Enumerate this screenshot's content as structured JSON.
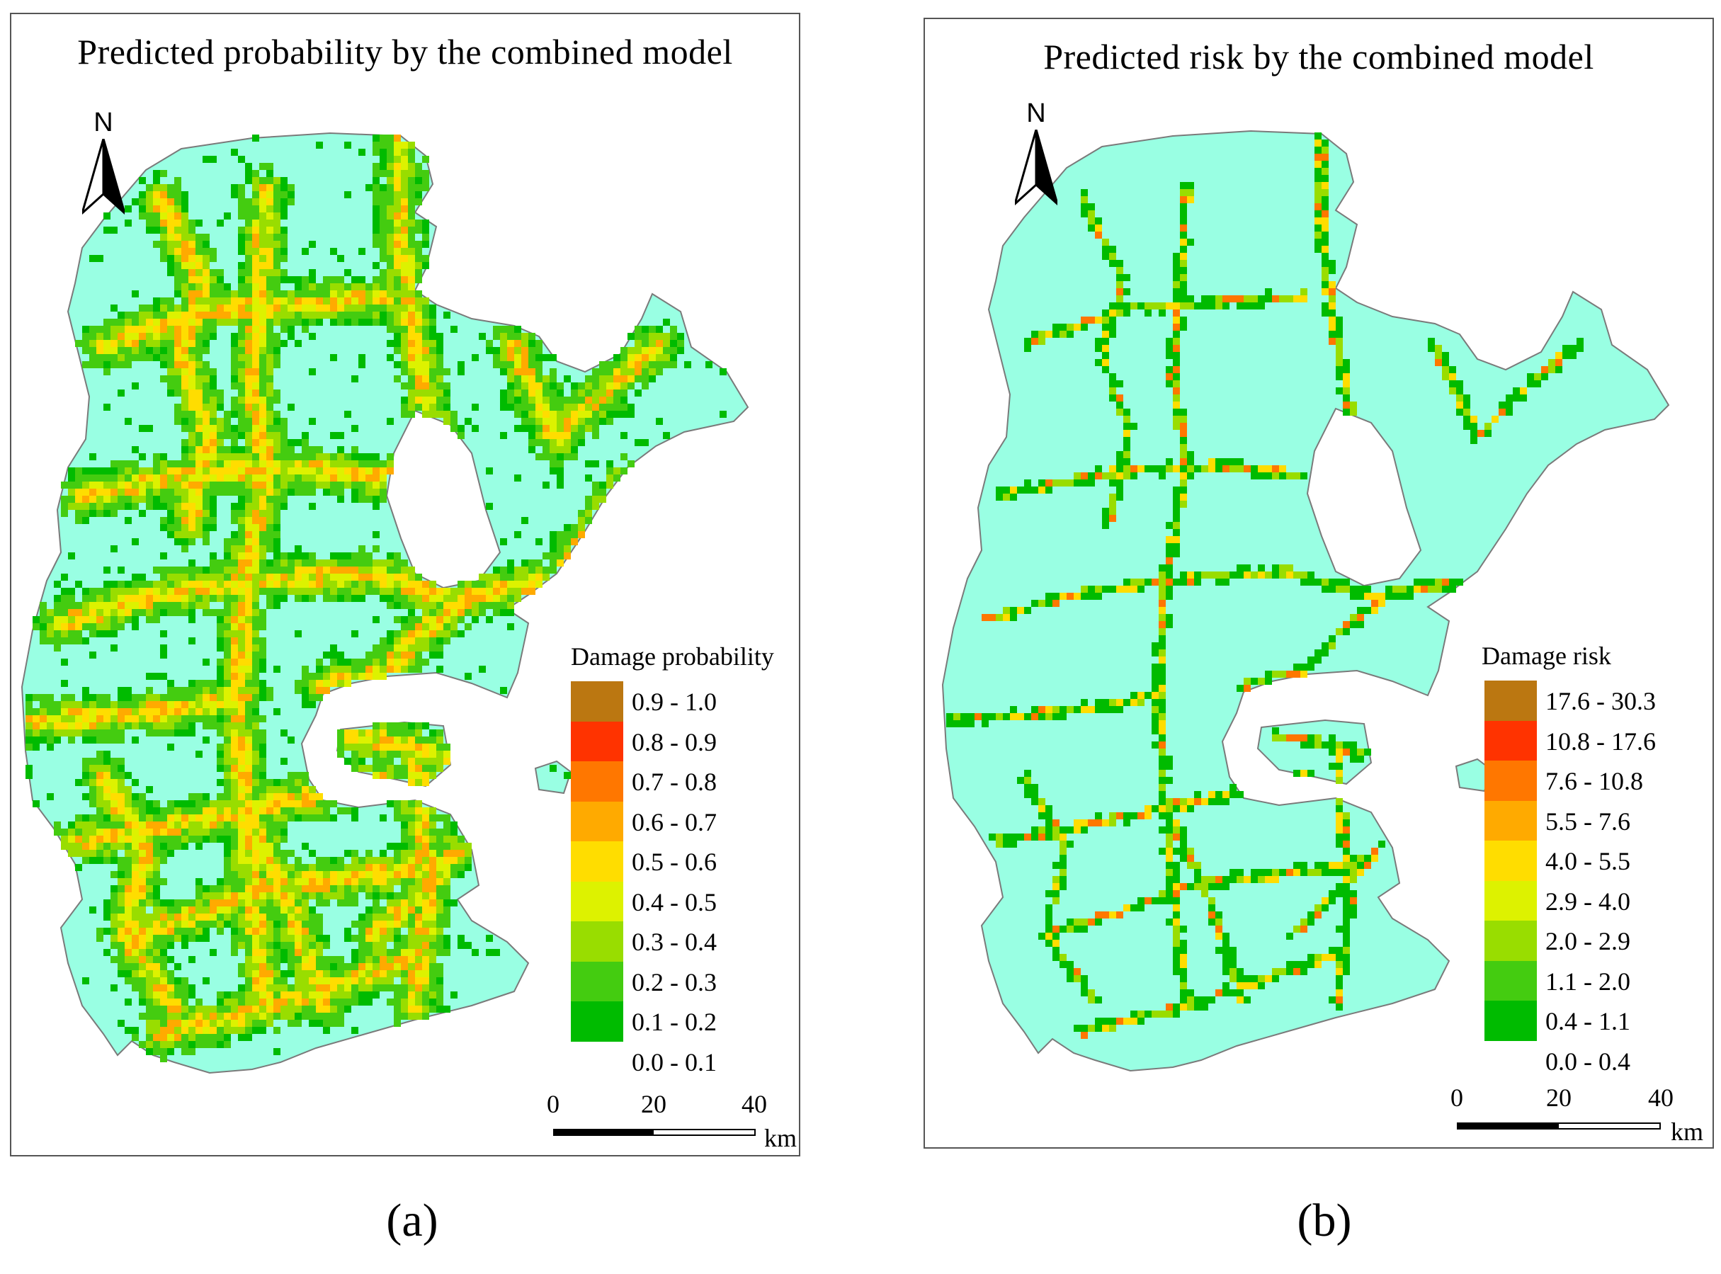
{
  "colors": {
    "land": "#99ffe3",
    "coast": "#7a7a7a",
    "classes": [
      "#ffffff",
      "#00bb00",
      "#44cc10",
      "#99dd00",
      "#ddf200",
      "#ffdd00",
      "#ffaa00",
      "#ff7700",
      "#ff3300",
      "#bb7711"
    ]
  },
  "panels": [
    {
      "id": "a",
      "title": "Predicted probability by the combined model",
      "north_label": "N",
      "legend": {
        "title": "Damage probability",
        "classes": [
          "0.9 - 1.0",
          "0.8 - 0.9",
          "0.7 - 0.8",
          "0.6 - 0.7",
          "0.5 - 0.6",
          "0.4 - 0.5",
          "0.3 - 0.4",
          "0.2 - 0.3",
          "0.1 - 0.2",
          "0.0 - 0.1"
        ]
      },
      "scale": {
        "ticks": [
          "0",
          "20",
          "40"
        ],
        "unit": "km"
      },
      "label": "(a)"
    },
    {
      "id": "b",
      "title": "Predicted risk by the combined model",
      "north_label": "N",
      "legend": {
        "title": "Damage risk",
        "classes": [
          "17.6 - 30.3",
          "10.8 - 17.6",
          "7.6 - 10.8",
          "5.5 - 7.6",
          "4.0 - 5.5",
          "2.9 - 4.0",
          "2.0 - 2.9",
          "1.1 - 2.0",
          "0.4 - 1.1",
          "0.0 - 0.4"
        ]
      },
      "scale": {
        "ticks": [
          "0",
          "20",
          "40"
        ],
        "unit": "km"
      },
      "label": "(b)"
    }
  ]
}
